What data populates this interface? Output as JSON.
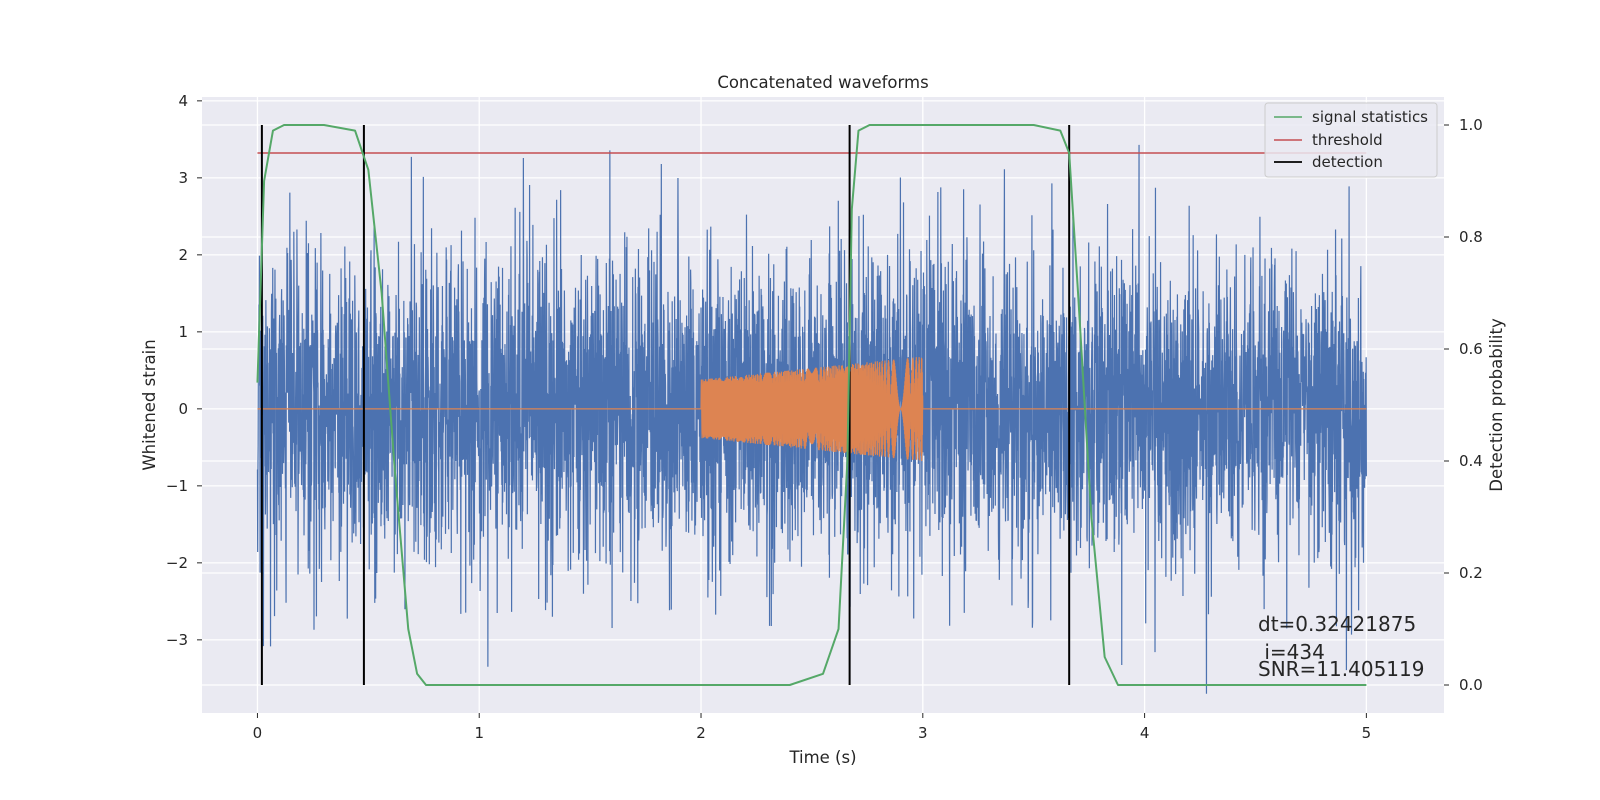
{
  "chart_data": {
    "type": "line",
    "title": "Concatenated waveforms",
    "xlabel": "Time (s)",
    "ylabel": "Whitened strain",
    "y2label": "Detection probability",
    "xlim": [
      -0.25,
      5.35
    ],
    "ylim": [
      -3.95,
      4.05
    ],
    "y2lim": [
      -0.05,
      1.05
    ],
    "x_ticks": [
      0,
      1,
      2,
      3,
      4,
      5
    ],
    "y_ticks": [
      -3,
      -2,
      -1,
      0,
      1,
      2,
      3,
      4
    ],
    "y2_ticks": [
      0.0,
      0.2,
      0.4,
      0.6,
      0.8,
      1.0
    ],
    "y_tick_labels": [
      "−3",
      "−2",
      "−1",
      "0",
      "1",
      "2",
      "3",
      "4"
    ],
    "y2_tick_labels": [
      "0.0",
      "0.2",
      "0.4",
      "0.6",
      "0.8",
      "1.0"
    ],
    "grid": true,
    "legend_position": "top-right",
    "series": [
      {
        "role": "noise",
        "color": "#4c72b0",
        "x_range": [
          0,
          5
        ],
        "approx_amplitude": 3.7
      },
      {
        "role": "injected",
        "color": "#dd8452",
        "x_range": [
          2.0,
          3.0
        ],
        "amplitude_start": 0.38,
        "amplitude_end": 0.68,
        "zero_outside_range": true
      },
      {
        "name": "signal statistics",
        "axis": "right",
        "color": "#55a868",
        "x": [
          0.0,
          0.03,
          0.07,
          0.12,
          0.3,
          0.44,
          0.5,
          0.56,
          0.62,
          0.68,
          0.72,
          0.76,
          0.8,
          2.4,
          2.55,
          2.62,
          2.66,
          2.68,
          2.71,
          2.76,
          2.9,
          3.5,
          3.62,
          3.66,
          3.7,
          3.76,
          3.82,
          3.88,
          5.0
        ],
        "y": [
          0.54,
          0.9,
          0.99,
          1.0,
          1.0,
          0.99,
          0.92,
          0.7,
          0.38,
          0.1,
          0.02,
          0.0,
          0.0,
          0.0,
          0.02,
          0.1,
          0.4,
          0.85,
          0.99,
          1.0,
          1.0,
          1.0,
          0.99,
          0.95,
          0.7,
          0.3,
          0.05,
          0.0,
          0.0
        ]
      },
      {
        "name": "threshold",
        "axis": "right",
        "color": "#c44e52",
        "x": [
          0,
          5
        ],
        "y": [
          0.95,
          0.95
        ]
      },
      {
        "name": "detection",
        "axis": "right",
        "color": "#000000",
        "x_positions": [
          0.02,
          0.48,
          2.67,
          3.66
        ],
        "y_range": [
          0,
          1
        ]
      }
    ],
    "legend": [
      {
        "label": "signal statistics",
        "color": "#55a868"
      },
      {
        "label": "threshold",
        "color": "#c44e52"
      },
      {
        "label": "detection",
        "color": "#000000"
      }
    ],
    "annotations": [
      "dt=0.32421875",
      " i=434",
      "SNR=11.405119"
    ]
  }
}
